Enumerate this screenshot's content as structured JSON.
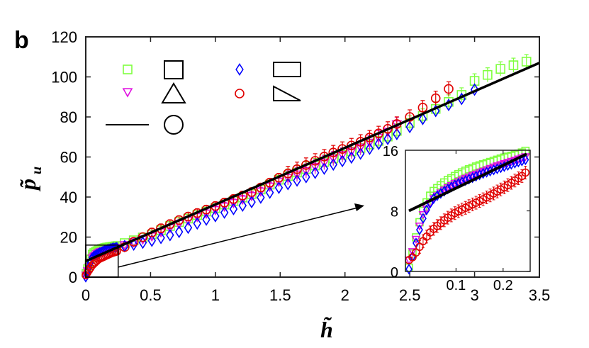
{
  "chart_data": {
    "type": "scatter",
    "panel_label": "b",
    "xlabel": "h̃",
    "ylabel": "p̃",
    "ylabel_subscript": "u",
    "xlim": [
      0,
      3.5
    ],
    "ylim": [
      0,
      120
    ],
    "xticks": [
      "0",
      "0.5",
      "1",
      "1.5",
      "2",
      "2.5",
      "3",
      "3.5"
    ],
    "yticks": [
      "0",
      "20",
      "40",
      "60",
      "80",
      "100",
      "120"
    ],
    "legend": {
      "placement": "top-left",
      "entries": [
        {
          "marker": "square",
          "color": "#7fff3f",
          "shape": "square"
        },
        {
          "marker": "triangle-down",
          "color": "#e010e0",
          "shape": "triangle"
        },
        {
          "marker": "line",
          "color": "#000000",
          "shape": "circle"
        },
        {
          "marker": "diamond",
          "color": "#0000ff",
          "shape": "rectangle"
        },
        {
          "marker": "circle",
          "color": "#e00000",
          "shape": "right-triangle"
        }
      ]
    },
    "fit_line": {
      "color": "#000000",
      "x": [
        0,
        3.5
      ],
      "y": [
        8,
        107
      ]
    },
    "series": [
      {
        "name": "square",
        "color": "#7fff3f",
        "marker": "square",
        "x": [
          0.0,
          0.05,
          0.1,
          0.15,
          0.2,
          0.25,
          0.35,
          0.5,
          0.7,
          0.9,
          1.1,
          1.3,
          1.5,
          1.7,
          1.9,
          2.1,
          2.3,
          2.5,
          2.7,
          2.9,
          3.0,
          3.2,
          3.42
        ],
        "y": [
          2,
          12,
          14,
          15,
          15.5,
          16,
          18,
          21,
          27,
          32,
          37,
          42,
          49,
          54,
          59,
          64,
          69,
          77,
          84,
          91,
          98,
          104,
          108
        ]
      },
      {
        "name": "triangle-down",
        "color": "#e010e0",
        "marker": "triangle-down",
        "x": [
          0.0,
          0.05,
          0.1,
          0.15,
          0.2,
          0.25,
          0.35,
          0.5,
          0.7,
          0.9,
          1.1,
          1.3,
          1.5,
          1.7,
          1.9,
          2.1,
          2.3,
          2.45
        ],
        "y": [
          1,
          10,
          12.5,
          13.5,
          14.5,
          15,
          17,
          20,
          26,
          31,
          36,
          41,
          48,
          53,
          59,
          64,
          71,
          79
        ]
      },
      {
        "name": "diamond",
        "color": "#0000ff",
        "marker": "diamond",
        "x": [
          0.0,
          0.05,
          0.1,
          0.15,
          0.2,
          0.25,
          0.35,
          0.5,
          0.7,
          0.9,
          1.1,
          1.3,
          1.5,
          1.7,
          1.9,
          2.1,
          2.3,
          2.5,
          2.7,
          2.9,
          3.05
        ],
        "y": [
          0,
          10,
          12,
          13.5,
          14.5,
          15,
          16,
          18,
          22,
          28,
          33,
          38,
          45,
          50,
          56,
          61,
          68,
          75,
          83,
          89,
          96
        ]
      },
      {
        "name": "circle",
        "color": "#e00000",
        "marker": "circle",
        "x": [
          0.0,
          0.05,
          0.1,
          0.15,
          0.2,
          0.25,
          0.35,
          0.5,
          0.7,
          0.9,
          1.1,
          1.3,
          1.5,
          1.7,
          1.9,
          2.1,
          2.3,
          2.5,
          2.65,
          2.8
        ],
        "y": [
          1,
          6,
          9,
          10.5,
          12,
          13,
          17,
          22,
          28,
          33,
          38,
          43,
          50,
          56,
          62,
          67,
          73,
          80,
          87,
          94
        ]
      }
    ],
    "inset": {
      "xlim": [
        0,
        0.25
      ],
      "ylim": [
        0,
        16
      ],
      "xticks": [
        "0.1",
        "0.2"
      ],
      "yticks": [
        "0",
        "8",
        "16"
      ],
      "zoom_region": {
        "x": [
          0,
          0.25
        ],
        "y": [
          0,
          16
        ]
      },
      "fit_line": {
        "x": [
          0,
          0.25
        ],
        "y": [
          8,
          15.5
        ]
      },
      "series": [
        {
          "name": "square",
          "color": "#7fff3f",
          "marker": "square",
          "x": [
            0.0,
            0.01,
            0.02,
            0.03,
            0.04,
            0.05,
            0.06,
            0.07,
            0.08,
            0.09,
            0.1,
            0.12,
            0.14,
            0.16,
            0.18,
            0.2,
            0.22,
            0.24,
            0.25
          ],
          "y": [
            0.5,
            3,
            6,
            8,
            9.5,
            10.5,
            11,
            11.5,
            12,
            12.3,
            12.7,
            13.3,
            13.8,
            14.2,
            14.6,
            15,
            15.3,
            15.7,
            16
          ]
        },
        {
          "name": "triangle-down",
          "color": "#e010e0",
          "marker": "triangle-down",
          "x": [
            0.0,
            0.01,
            0.02,
            0.03,
            0.04,
            0.05,
            0.06,
            0.08,
            0.1,
            0.12,
            0.14,
            0.16,
            0.18,
            0.2,
            0.22,
            0.24,
            0.25
          ],
          "y": [
            1.5,
            3,
            5.5,
            7.5,
            8.5,
            9.5,
            10,
            11,
            11.7,
            12.3,
            12.8,
            13.3,
            13.8,
            14.2,
            14.6,
            15,
            15.2
          ]
        },
        {
          "name": "diamond",
          "color": "#0000ff",
          "marker": "diamond",
          "x": [
            0.0,
            0.01,
            0.02,
            0.03,
            0.04,
            0.05,
            0.06,
            0.08,
            0.1,
            0.12,
            0.14,
            0.16,
            0.18,
            0.2,
            0.22,
            0.24,
            0.25
          ],
          "y": [
            0.3,
            2.5,
            5,
            7,
            8.5,
            9.5,
            10,
            10.8,
            11.5,
            12,
            12.5,
            13,
            13.4,
            13.8,
            14.2,
            14.6,
            14.8
          ]
        },
        {
          "name": "circle",
          "color": "#e00000",
          "marker": "circle",
          "x": [
            0.0,
            0.01,
            0.02,
            0.03,
            0.04,
            0.05,
            0.06,
            0.08,
            0.1,
            0.12,
            0.14,
            0.16,
            0.18,
            0.2,
            0.22,
            0.24,
            0.25
          ],
          "y": [
            1.5,
            2,
            3,
            4,
            4.8,
            5.5,
            6,
            7,
            7.8,
            8.4,
            9,
            9.6,
            10.3,
            11,
            11.8,
            12.6,
            13.2
          ]
        }
      ]
    },
    "grid": false
  }
}
